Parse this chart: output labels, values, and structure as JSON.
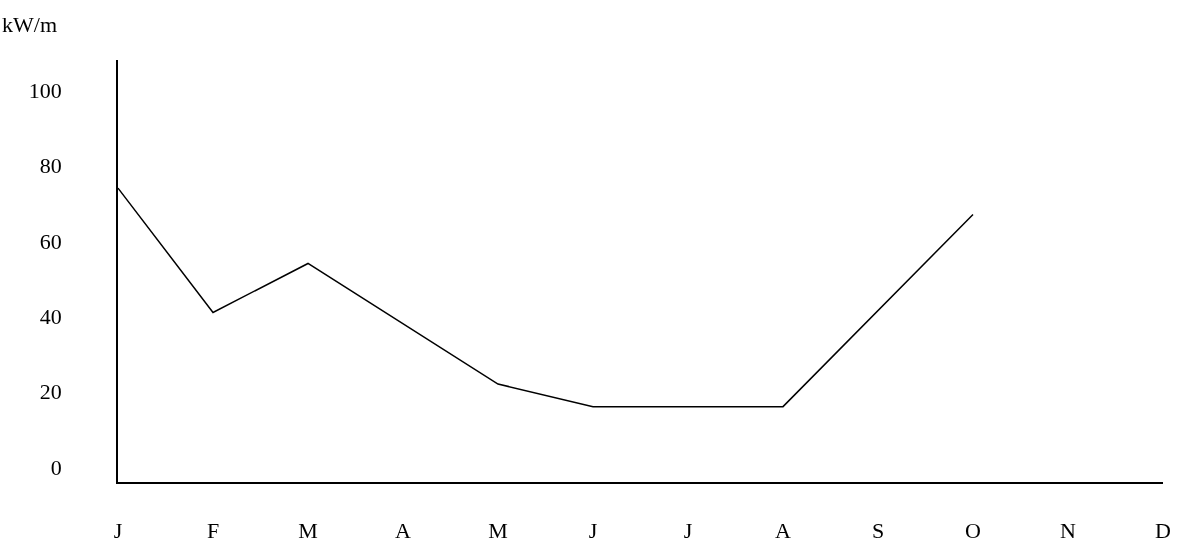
{
  "chart_data": {
    "type": "line",
    "ylabel": "kW/m",
    "categories": [
      "J",
      "F",
      "M",
      "A",
      "M",
      "J",
      "J",
      "A",
      "S",
      "O",
      "N",
      "D"
    ],
    "series": [
      {
        "color": "#000000",
        "values": [
          74,
          41,
          54,
          null,
          22,
          16,
          16,
          16,
          null,
          67,
          null,
          null
        ]
      }
    ],
    "ylim": [
      -4,
      108
    ],
    "yticks": [
      0,
      20,
      40,
      60,
      80,
      100
    ],
    "grid": false,
    "legend": false,
    "marker": "none",
    "line_style": "solid"
  }
}
